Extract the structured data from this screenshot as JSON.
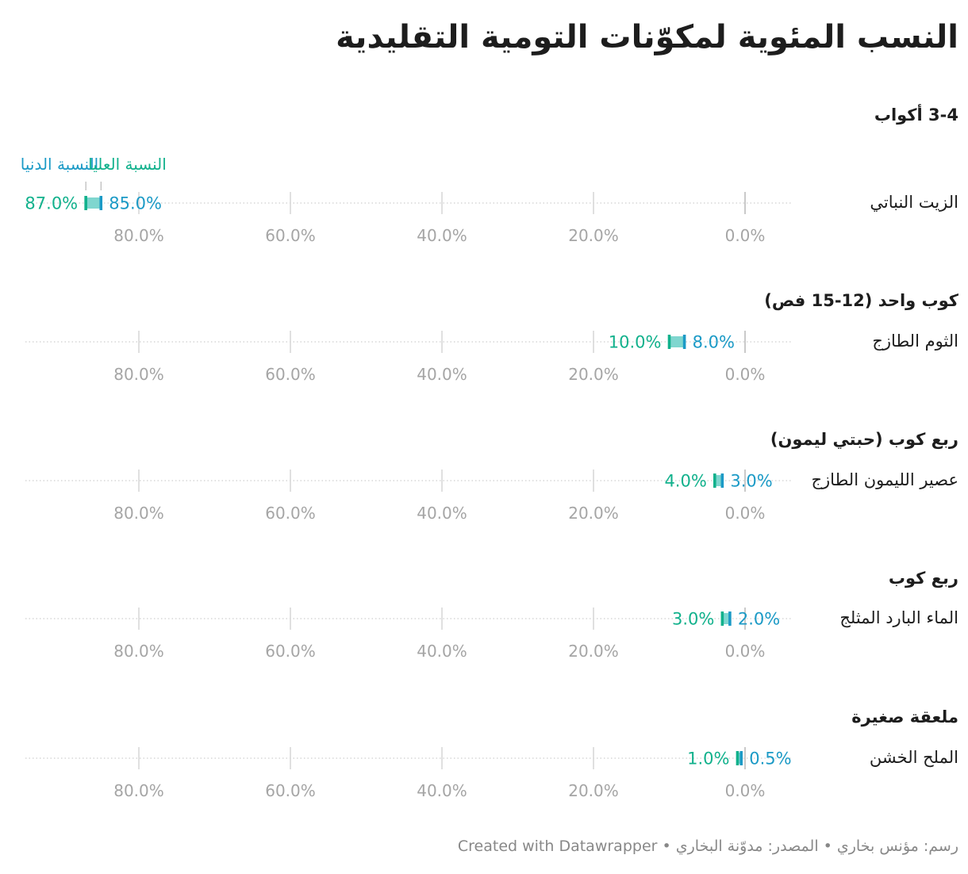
{
  "chart_data": {
    "type": "range-dot",
    "title": "النسب المئوية لمكوّنات التومية التقليدية",
    "x_axis": {
      "ticks": [
        80,
        60,
        40,
        20,
        0
      ],
      "tick_format": "0.0%",
      "range": [
        0,
        100
      ],
      "direction": "right-to-left"
    },
    "legend": {
      "low_label": "النسبة الدنيا",
      "high_label": "النسبة العليا",
      "placement": "above-first-row"
    },
    "colors": {
      "low": "#1b9ac6",
      "high": "#11b18c",
      "range_band": "#7fd6cf",
      "grid": "#d6d6d6",
      "tick_text": "#a5a5a5",
      "label": "#1d1d1d"
    },
    "rows": [
      {
        "group": "3-4 أكواب",
        "label": "الزيت النباتي",
        "low": 85.0,
        "high": 87.0,
        "low_text": "85.0%",
        "high_text": "87.0%"
      },
      {
        "group": "كوب واحد (12-15 فص)",
        "label": "الثوم الطازج",
        "low": 8.0,
        "high": 10.0,
        "low_text": "8.0%",
        "high_text": "10.0%"
      },
      {
        "group": "ربع كوب (حبتي ليمون)",
        "label": "عصير الليمون الطازج",
        "low": 3.0,
        "high": 4.0,
        "low_text": "3.0%",
        "high_text": "4.0%"
      },
      {
        "group": "ربع كوب",
        "label": "الماء البارد المثلج",
        "low": 2.0,
        "high": 3.0,
        "low_text": "2.0%",
        "high_text": "3.0%"
      },
      {
        "group": "ملعقة صغيرة",
        "label": "الملح الخشن",
        "low": 0.5,
        "high": 1.0,
        "low_text": "0.5%",
        "high_text": "1.0%"
      }
    ]
  },
  "footer": {
    "text": "رسم: مؤنس بخاري • المصدر: مدوّنة البخاري • Created with Datawrapper"
  }
}
